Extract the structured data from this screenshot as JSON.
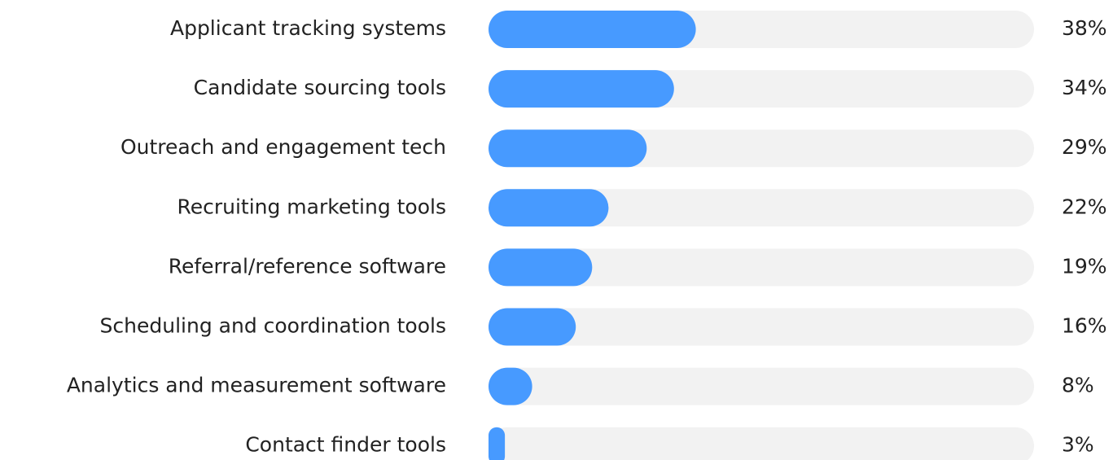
{
  "chart_data": {
    "type": "bar",
    "orientation": "horizontal",
    "categories": [
      "Applicant tracking systems",
      "Candidate sourcing tools",
      "Outreach and engagement tech",
      "Recruiting marketing tools",
      "Referral/reference software",
      "Scheduling and coordination tools",
      "Analytics and measurement software",
      "Contact finder tools"
    ],
    "values": [
      38,
      34,
      29,
      22,
      19,
      16,
      8,
      3
    ],
    "value_labels": [
      "38%",
      "34%",
      "29%",
      "22%",
      "19%",
      "16%",
      "8%",
      "3%"
    ],
    "color": "#479aff",
    "track_color": "#f2f2f2",
    "xlim": [
      0,
      100
    ]
  }
}
